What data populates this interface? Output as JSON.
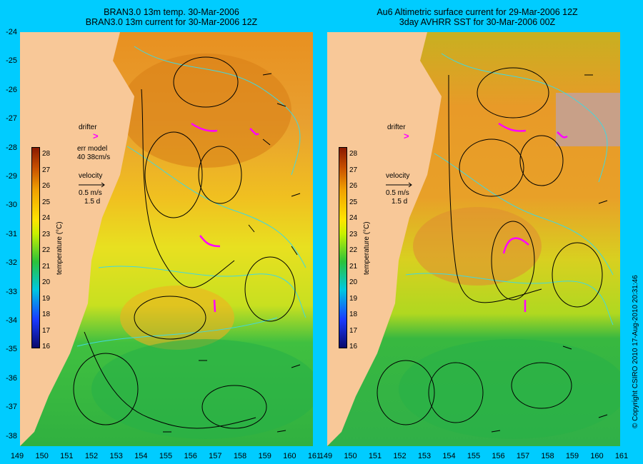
{
  "left_panel": {
    "title_line1": "BRAN3.0 13m temp. 30-Mar-2006",
    "title_line2": "BRAN3.0 13m current for 30-Mar-2006 12Z",
    "legend": {
      "drifter_label": "drifter",
      "err_model_line1": "err model",
      "err_model_line2": "40 38cm/s",
      "velocity_label": "velocity",
      "velocity_scale": "0.5 m/s",
      "velocity_time": "1.5 d"
    }
  },
  "right_panel": {
    "title_line1": "Au6 Altimetric surface current for 29-Mar-2006 12Z",
    "title_line2": "3day AVHRR SST for 30-Mar-2006 00Z",
    "legend": {
      "drifter_label": "drifter",
      "velocity_label": "velocity",
      "velocity_scale": "0.5 m/s",
      "velocity_time": "1.5 d"
    }
  },
  "colorbar": {
    "label": "temperature (°C)",
    "ticks": [
      "28",
      "27",
      "26",
      "25",
      "24",
      "23",
      "22",
      "21",
      "20",
      "19",
      "18",
      "17",
      "16"
    ]
  },
  "axes": {
    "lat_ticks": [
      "-24",
      "-25",
      "-26",
      "-27",
      "-28",
      "-29",
      "-30",
      "-31",
      "-32",
      "-33",
      "-34",
      "-35",
      "-36",
      "-37",
      "-38"
    ],
    "lon_ticks": [
      "149",
      "150",
      "151",
      "152",
      "153",
      "154",
      "155",
      "156",
      "157",
      "158",
      "159",
      "160",
      "161"
    ]
  },
  "copyright": "© Copyright CSIRO 2010   17-Aug-2010 20:31:46",
  "colors": {
    "background": "#00ccff",
    "land": "#f8c898",
    "warm": "#e89a20",
    "mid": "#f0e020",
    "cool": "#30b830",
    "contour": "#40d8e0",
    "drifter": "#ff00ff"
  }
}
